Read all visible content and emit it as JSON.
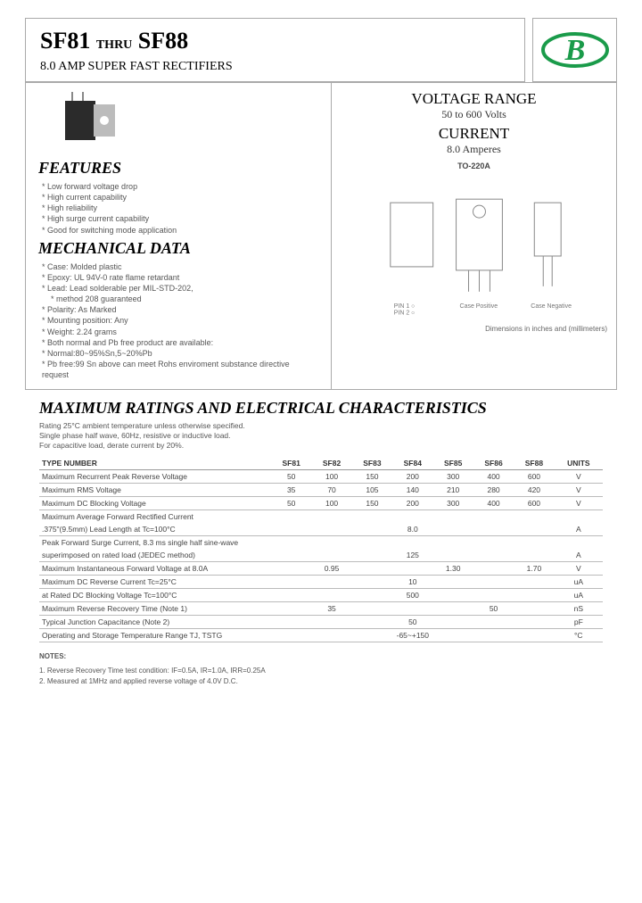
{
  "header": {
    "title_a": "SF81",
    "thru": "THRU",
    "title_b": "SF88",
    "subtitle": "8.0 AMP SUPER FAST RECTIFIERS"
  },
  "voltage_range": {
    "title": "VOLTAGE RANGE",
    "value": "50 to 600 Volts",
    "current_title": "CURRENT",
    "current_value": "8.0 Amperes",
    "package": "TO-220A",
    "dim_note": "Dimensions in inches and (millimeters)"
  },
  "features": {
    "title": "FEATURES",
    "items": [
      "Low forward voltage drop",
      "High current capability",
      "High reliability",
      "High surge current capability",
      "Good for switching mode application"
    ]
  },
  "mechanical": {
    "title": "MECHANICAL DATA",
    "items": [
      "Case: Molded plastic",
      "Epoxy: UL 94V-0 rate flame retardant",
      "Lead: Lead solderable per MIL-STD-202,",
      "method 208 guaranteed",
      "Polarity: As Marked",
      "Mounting position: Any",
      "Weight: 2.24 grams",
      "Both normal and Pb free product are available:",
      "Normal:80~95%Sn,5~20%Pb",
      "Pb free:99 Sn above can meet Rohs enviroment substance directive request"
    ]
  },
  "ratings": {
    "title": "MAXIMUM RATINGS AND ELECTRICAL CHARACTERISTICS",
    "note": "Rating 25°C ambient temperature unless otherwise specified.\nSingle phase half wave, 60Hz, resistive or inductive load.\nFor capacitive load, derate current by 20%.",
    "type_label": "TYPE NUMBER",
    "columns": [
      "SF81",
      "SF82",
      "SF83",
      "SF84",
      "SF85",
      "SF86",
      "SF88",
      "UNITS"
    ],
    "rows": [
      {
        "param": "Maximum Recurrent Peak Reverse Voltage",
        "vals": [
          "50",
          "100",
          "150",
          "200",
          "300",
          "400",
          "600",
          "V"
        ]
      },
      {
        "param": "Maximum RMS Voltage",
        "vals": [
          "35",
          "70",
          "105",
          "140",
          "210",
          "280",
          "420",
          "V"
        ]
      },
      {
        "param": "Maximum DC Blocking Voltage",
        "vals": [
          "50",
          "100",
          "150",
          "200",
          "300",
          "400",
          "600",
          "V"
        ]
      },
      {
        "param": "Maximum Average Forward Rectified Current",
        "vals": [
          "",
          "",
          "",
          "",
          "",
          "",
          "",
          ""
        ]
      },
      {
        "param": ".375\"(9.5mm) Lead Length at Tc=100°C",
        "span": "8.0",
        "unit": "A"
      },
      {
        "param": "Peak Forward Surge Current, 8.3 ms single half sine-wave",
        "vals": [
          "",
          "",
          "",
          "",
          "",
          "",
          "",
          ""
        ]
      },
      {
        "param": "superimposed on rated load (JEDEC method)",
        "span": "125",
        "unit": "A"
      },
      {
        "param": "Maximum Instantaneous Forward Voltage at 8.0A",
        "vals": [
          "",
          "0.95",
          "",
          "",
          "1.30",
          "",
          "1.70",
          "V"
        ]
      },
      {
        "param": "Maximum DC Reverse Current      Tc=25°C",
        "span": "10",
        "unit": "uA"
      },
      {
        "param": "at Rated DC Blocking Voltage      Tc=100°C",
        "span": "500",
        "unit": "uA"
      },
      {
        "param": "Maximum Reverse Recovery Time (Note 1)",
        "vals": [
          "",
          "35",
          "",
          "",
          "",
          "50",
          "",
          "nS"
        ]
      },
      {
        "param": "Typical Junction Capacitance (Note 2)",
        "span": "50",
        "unit": "pF"
      },
      {
        "param": "Operating and Storage Temperature Range TJ, TSTG",
        "span": "-65~+150",
        "unit": "°C"
      }
    ]
  },
  "notes": {
    "header": "NOTES:",
    "n1": "1. Reverse Recovery Time test condition: IF=0.5A, IR=1.0A, IRR=0.25A",
    "n2": "2. Measured at 1MHz and applied reverse voltage of 4.0V D.C."
  },
  "colors": {
    "logo_stroke": "#1a9b4a",
    "logo_fill": "#1a9b4a"
  }
}
